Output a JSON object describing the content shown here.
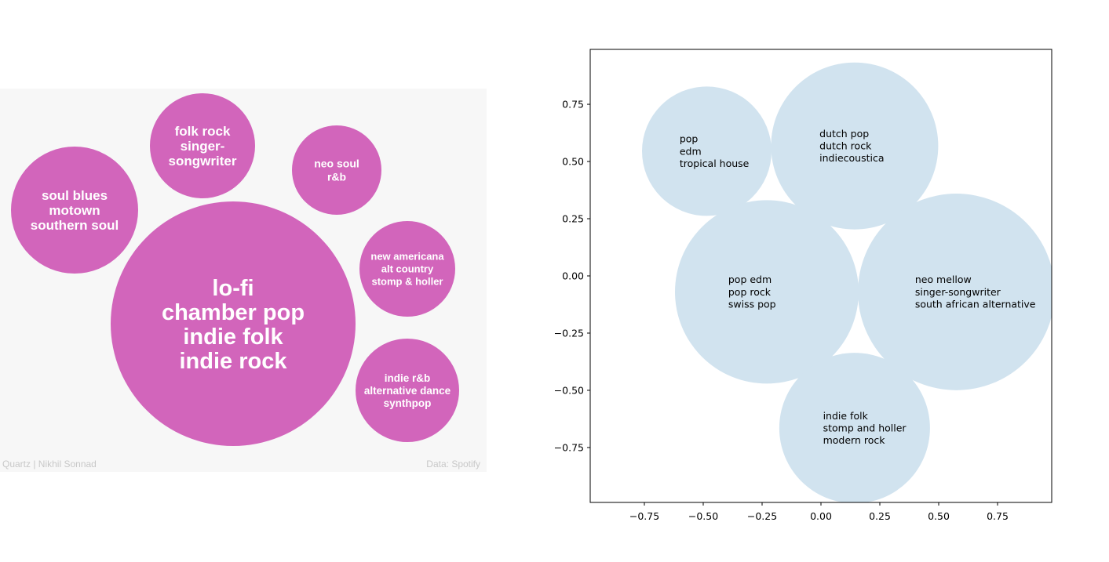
{
  "chart_data": [
    {
      "type": "bubble",
      "title": "",
      "colors": {
        "bubble": "#d265bb",
        "label": "#ffffff",
        "panel_background": "#f7f7f7",
        "credit": "#c8c8c8"
      },
      "credit_left": "Quartz | Nikhil Sonnad",
      "credit_right": "Data: Spotify",
      "bubbles": [
        {
          "labels": [
            "soul blues",
            "motown",
            "southern soul"
          ]
        },
        {
          "labels": [
            "folk rock",
            "singer-",
            "songwriter"
          ]
        },
        {
          "labels": [
            "neo soul",
            "r&b"
          ]
        },
        {
          "labels": [
            "new americana",
            "alt country",
            "stomp & holler"
          ]
        },
        {
          "labels": [
            "lo-fi",
            "chamber pop",
            "indie folk",
            "indie rock"
          ]
        },
        {
          "labels": [
            "indie r&b",
            "alternative dance",
            "synthpop"
          ]
        }
      ]
    },
    {
      "type": "bubble",
      "title": "",
      "xlabel": "",
      "ylabel": "",
      "xlim": [
        -0.98,
        0.98
      ],
      "ylim": [
        -0.99,
        0.99
      ],
      "xticks": [
        -0.75,
        -0.5,
        -0.25,
        0.0,
        0.25,
        0.5,
        0.75
      ],
      "xtick_labels": [
        "−0.75",
        "−0.50",
        "−0.25",
        "0.00",
        "0.25",
        "0.50",
        "0.75"
      ],
      "yticks": [
        0.75,
        0.5,
        0.25,
        0.0,
        -0.25,
        -0.5,
        -0.75
      ],
      "ytick_labels": [
        "0.75",
        "0.50",
        "0.25",
        "0.00",
        "−0.25",
        "−0.50",
        "−0.75"
      ],
      "grid": false,
      "colors": {
        "bubble": "#d1e3ef",
        "text": "#000000",
        "axes": "#000000"
      },
      "circles": [
        {
          "x": -0.485,
          "y": 0.545,
          "r": 0.275,
          "labels": [
            "pop",
            "edm",
            "tropical house"
          ]
        },
        {
          "x": 0.143,
          "y": 0.568,
          "r": 0.355,
          "labels": [
            "dutch pop",
            "dutch rock",
            "indiecoustica"
          ]
        },
        {
          "x": -0.23,
          "y": -0.07,
          "r": 0.39,
          "labels": [
            "pop edm",
            "pop rock",
            "swiss pop"
          ]
        },
        {
          "x": 0.575,
          "y": -0.07,
          "r": 0.418,
          "labels": [
            "neo mellow",
            "singer-songwriter",
            "south african alternative"
          ]
        },
        {
          "x": 0.143,
          "y": -0.665,
          "r": 0.32,
          "labels": [
            "indie folk",
            "stomp and holler",
            "modern rock"
          ]
        }
      ]
    }
  ]
}
